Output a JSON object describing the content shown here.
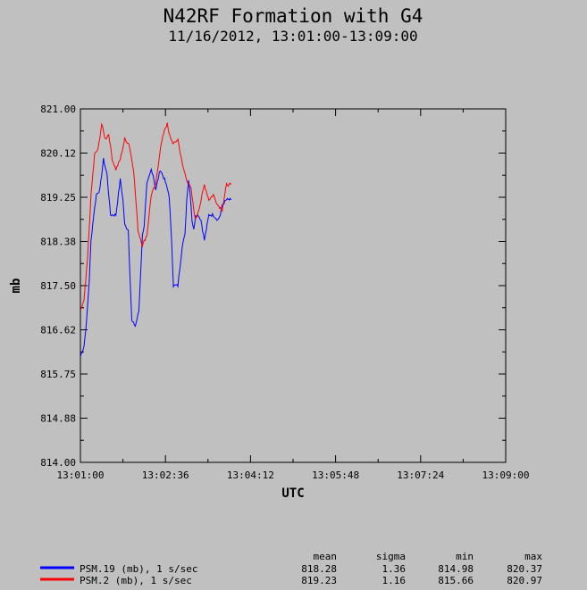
{
  "chart_data": {
    "type": "line",
    "title": "N42RF Formation with G4",
    "subtitle": "11/16/2012, 13:01:00-13:09:00",
    "xlabel": "UTC",
    "ylabel": "mb",
    "x_ticks": [
      "13:01:00",
      "13:02:36",
      "13:04:12",
      "13:05:48",
      "13:07:24",
      "13:09:00"
    ],
    "y_ticks": [
      "814.00",
      "814.88",
      "815.75",
      "816.62",
      "817.50",
      "818.38",
      "819.25",
      "820.12",
      "821.00"
    ],
    "ylim": [
      814.0,
      821.0
    ],
    "xlim_seconds": [
      0,
      480
    ],
    "grid": false,
    "stats_headers": [
      "mean",
      "sigma",
      "min",
      "max"
    ],
    "series": [
      {
        "name": "PSM.19 (mb), 1 s/sec",
        "color": "#0000ff",
        "mean": "818.28",
        "sigma": "1.36",
        "min": "814.98",
        "max": "820.37",
        "t": [
          0,
          4,
          7,
          10,
          12,
          15,
          18,
          22,
          26,
          30,
          34,
          40,
          45,
          48,
          50,
          54,
          58,
          62,
          66,
          70,
          72,
          75,
          80,
          82,
          85,
          90,
          95,
          100,
          103,
          105,
          110,
          115,
          118,
          120,
          122,
          124,
          126,
          128,
          130,
          133,
          136,
          140,
          145,
          150,
          155,
          158,
          160,
          165,
          170
        ],
        "values": [
          816.1,
          816.3,
          816.8,
          817.6,
          818.4,
          818.9,
          819.3,
          819.4,
          820.0,
          819.7,
          818.9,
          818.9,
          819.6,
          819.2,
          818.7,
          818.6,
          816.8,
          816.7,
          817.0,
          818.5,
          818.7,
          819.5,
          819.8,
          819.7,
          819.4,
          819.8,
          819.6,
          819.3,
          818.4,
          817.5,
          817.5,
          818.3,
          818.5,
          819.2,
          819.6,
          819.3,
          818.8,
          818.6,
          818.9,
          818.9,
          818.8,
          818.4,
          818.9,
          818.9,
          818.8,
          818.9,
          819.1,
          819.2,
          819.2
        ]
      },
      {
        "name": "PSM.2 (mb), 1 s/sec",
        "color": "#ff0000",
        "mean": "819.23",
        "sigma": "1.16",
        "min": "815.66",
        "max": "820.97",
        "t": [
          0,
          4,
          8,
          12,
          16,
          20,
          24,
          28,
          32,
          36,
          40,
          45,
          50,
          55,
          60,
          65,
          70,
          75,
          80,
          85,
          90,
          95,
          98,
          100,
          105,
          110,
          115,
          120,
          125,
          128,
          130,
          135,
          140,
          145,
          150,
          155,
          160,
          165,
          170
        ],
        "values": [
          817.0,
          817.2,
          818.0,
          819.3,
          820.1,
          820.2,
          820.7,
          820.4,
          820.5,
          820.0,
          819.8,
          820.0,
          820.4,
          820.3,
          819.8,
          818.6,
          818.3,
          818.5,
          819.3,
          819.5,
          820.2,
          820.6,
          820.7,
          820.5,
          820.3,
          820.4,
          819.9,
          819.6,
          819.4,
          819.0,
          818.8,
          819.1,
          819.5,
          819.2,
          819.3,
          819.1,
          819.0,
          819.5,
          819.5
        ]
      }
    ]
  }
}
